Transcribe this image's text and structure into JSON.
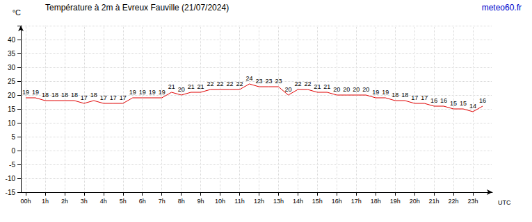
{
  "chart_data": {
    "type": "line",
    "title": "Température à 2m à Evreux Fauville (21/07/2024)",
    "annotations": [
      "meteo60.fr"
    ],
    "x_label": "UTC",
    "y_label": "°C",
    "x": [
      0,
      0.5,
      1,
      1.5,
      2,
      2.5,
      3,
      3.5,
      4,
      4.5,
      5,
      5.5,
      6,
      6.5,
      7,
      7.5,
      8,
      8.5,
      9,
      9.5,
      10,
      10.5,
      11,
      11.5,
      12,
      12.5,
      13,
      13.5,
      14,
      14.5,
      15,
      15.5,
      16,
      16.5,
      17,
      17.5,
      18,
      18.5,
      19,
      19.5,
      20,
      20.5,
      21,
      21.5,
      22,
      22.5,
      23,
      23.5
    ],
    "values": [
      19,
      19,
      18,
      18,
      18,
      18,
      17,
      18,
      17,
      17,
      17,
      19,
      19,
      19,
      19,
      21,
      20,
      21,
      21,
      22,
      22,
      22,
      22,
      24,
      23,
      23,
      23,
      20,
      22,
      22,
      21,
      21,
      20,
      20,
      20,
      20,
      19,
      19,
      18,
      18,
      17,
      17,
      16,
      16,
      15,
      15,
      14,
      16
    ],
    "color": "#e00000",
    "xlim": [
      -0.25,
      24
    ],
    "xticks": [
      {
        "value": 0,
        "label": "00h"
      },
      {
        "value": 1,
        "label": "1h"
      },
      {
        "value": 2,
        "label": "2h"
      },
      {
        "value": 3,
        "label": "3h"
      },
      {
        "value": 4,
        "label": "4h"
      },
      {
        "value": 5,
        "label": "5h"
      },
      {
        "value": 6,
        "label": "6h"
      },
      {
        "value": 7,
        "label": "7h"
      },
      {
        "value": 8,
        "label": "8h"
      },
      {
        "value": 9,
        "label": "9h"
      },
      {
        "value": 10,
        "label": "10h"
      },
      {
        "value": 11,
        "label": "11h"
      },
      {
        "value": 12,
        "label": "12h"
      },
      {
        "value": 13,
        "label": "13h"
      },
      {
        "value": 14,
        "label": "14h"
      },
      {
        "value": 15,
        "label": "15h"
      },
      {
        "value": 16,
        "label": "16h"
      },
      {
        "value": 17,
        "label": "17h"
      },
      {
        "value": 18,
        "label": "18h"
      },
      {
        "value": 19,
        "label": "19h"
      },
      {
        "value": 20,
        "label": "20h"
      },
      {
        "value": 21,
        "label": "21h"
      },
      {
        "value": 22,
        "label": "22h"
      },
      {
        "value": 23,
        "label": "23h"
      }
    ],
    "ylim": [
      -15,
      45
    ],
    "yticks": [
      -15,
      -10,
      -5,
      0,
      5,
      10,
      15,
      20,
      25,
      30,
      35,
      40
    ],
    "grid": true,
    "data_labels": true
  }
}
